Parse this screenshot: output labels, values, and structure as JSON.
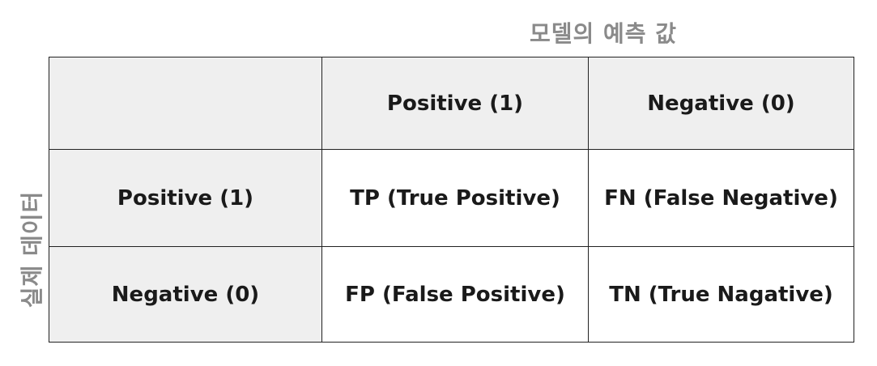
{
  "axis_labels": {
    "columns": "모델의 예측 값",
    "rows": "실제 데이터"
  },
  "header": {
    "corner": "",
    "columns": [
      "Positive (1)",
      "Negative (0)"
    ]
  },
  "rows": [
    {
      "label": "Positive (1)",
      "cells": [
        "TP (True Positive)",
        "FN (False Negative)"
      ]
    },
    {
      "label": "Negative (0)",
      "cells": [
        "FP (False Positive)",
        "TN (True Nagative)"
      ]
    }
  ],
  "colors": {
    "header_fill": "#efefef",
    "cell_fill": "#ffffff",
    "axis_label": "#8a8a8a",
    "border": "#222222"
  }
}
